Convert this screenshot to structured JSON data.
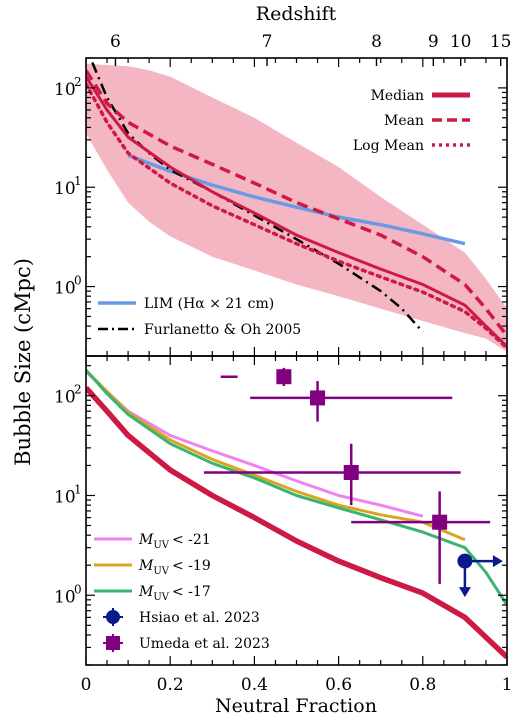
{
  "chart_data": {
    "type": "line",
    "top_axis": {
      "label": "Redshift",
      "ticks": [
        6,
        7,
        8,
        9,
        10,
        15
      ],
      "tick_labels": [
        "6",
        "7",
        "8",
        "9",
        "10",
        "15"
      ],
      "tick_x": [
        0.07,
        0.43,
        0.69,
        0.825,
        0.89,
        0.985
      ]
    },
    "xlabel": "Neutral Fraction",
    "ylabel": "Bubble Size (cMpc)",
    "x_ticks": [
      0,
      0.2,
      0.4,
      0.6,
      0.8,
      1
    ],
    "x_tick_labels": [
      "0",
      "0.2",
      "0.4",
      "0.6",
      "0.8",
      "1"
    ],
    "xlim": [
      0,
      1
    ],
    "panels": [
      {
        "name": "top",
        "yscale": "log",
        "ylim": [
          0.2,
          200
        ],
        "y_ticks": [
          1,
          10,
          100
        ],
        "y_tick_labels": [
          "10",
          "10",
          "10"
        ],
        "y_tick_exponents": [
          "0",
          "1",
          "2"
        ],
        "band": {
          "x": [
            0,
            0.05,
            0.1,
            0.15,
            0.2,
            0.3,
            0.4,
            0.5,
            0.6,
            0.7,
            0.8,
            0.9,
            0.95,
            1.0
          ],
          "lower": [
            35,
            15,
            7,
            4.5,
            3.2,
            2.0,
            1.45,
            1.05,
            0.8,
            0.6,
            0.45,
            0.34,
            0.3,
            0.22
          ],
          "upper": [
            175,
            170,
            165,
            150,
            130,
            80,
            50,
            28,
            16,
            8,
            4.2,
            2.2,
            1.2,
            0.6
          ]
        },
        "series": [
          {
            "name": "Median",
            "style": "solid",
            "color": "#cc1a45",
            "x": [
              0,
              0.05,
              0.1,
              0.2,
              0.3,
              0.4,
              0.5,
              0.6,
              0.7,
              0.8,
              0.9,
              0.95,
              1.0
            ],
            "values": [
              130,
              60,
              32,
              16,
              9,
              5.5,
              3.3,
              2.2,
              1.5,
              1.05,
              0.65,
              0.4,
              0.25
            ]
          },
          {
            "name": "Mean",
            "style": "dashed",
            "color": "#cc1a45",
            "x": [
              0,
              0.05,
              0.1,
              0.2,
              0.3,
              0.4,
              0.5,
              0.6,
              0.7,
              0.8,
              0.9,
              0.95,
              1.0
            ],
            "values": [
              150,
              70,
              45,
              26,
              17,
              11,
              7,
              4.8,
              3.3,
              2.0,
              1.05,
              0.6,
              0.32
            ]
          },
          {
            "name": "Log Mean",
            "style": "dotted",
            "color": "#cc1a45",
            "x": [
              0,
              0.05,
              0.1,
              0.2,
              0.3,
              0.4,
              0.5,
              0.6,
              0.7,
              0.8,
              0.9,
              0.95,
              1.0
            ],
            "values": [
              110,
              45,
              22,
              11,
              6.5,
              4.2,
              2.7,
              1.8,
              1.25,
              0.88,
              0.56,
              0.38,
              0.24
            ]
          },
          {
            "name": "LIM (Hα×21 cm)",
            "style": "solid",
            "color": "#6a9ae6",
            "x": [
              0.1,
              0.2,
              0.3,
              0.4,
              0.5,
              0.6,
              0.7,
              0.8,
              0.9
            ],
            "values": [
              21,
              14.5,
              10.5,
              8.0,
              6.3,
              5.0,
              4.2,
              3.4,
              2.7
            ]
          },
          {
            "name": "Furlanetto & Oh 2005",
            "style": "dashdot",
            "color": "#000000",
            "x": [
              0.015,
              0.05,
              0.1,
              0.15,
              0.2,
              0.3,
              0.4,
              0.5,
              0.6,
              0.7,
              0.75,
              0.8
            ],
            "values": [
              180,
              80,
              35,
              22,
              15,
              9,
              5.2,
              3.0,
              1.7,
              0.9,
              0.6,
              0.35
            ]
          }
        ],
        "legends": [
          {
            "placement": "top-right",
            "entries": [
              "Median",
              "Mean",
              "Log Mean"
            ]
          },
          {
            "placement": "bottom-left",
            "entries": [
              "LIM (Hα×21 cm)",
              "Furlanetto & Oh 2005"
            ]
          }
        ]
      },
      {
        "name": "bottom",
        "yscale": "log",
        "ylim": [
          0.2,
          250
        ],
        "y_ticks": [
          1,
          10,
          100
        ],
        "y_tick_labels": [
          "10",
          "10",
          "10"
        ],
        "y_tick_exponents": [
          "0",
          "1",
          "2"
        ],
        "series": [
          {
            "name": "Median",
            "style": "solid-thick",
            "color": "#cc1a45",
            "x": [
              0,
              0.05,
              0.1,
              0.2,
              0.3,
              0.4,
              0.5,
              0.6,
              0.7,
              0.8,
              0.9,
              0.95,
              1.0
            ],
            "values": [
              120,
              70,
              40,
              18,
              10,
              6,
              3.5,
              2.2,
              1.5,
              1.05,
              0.6,
              0.38,
              0.24
            ]
          },
          {
            "name": "MUV < -21",
            "style": "solid",
            "color": "#ee82ee",
            "x": [
              0,
              0.05,
              0.1,
              0.2,
              0.3,
              0.4,
              0.5,
              0.6,
              0.7,
              0.8
            ],
            "values": [
              175,
              110,
              70,
              40,
              28,
              20,
              14,
              10,
              8,
              6.2
            ]
          },
          {
            "name": "MUV < -19",
            "style": "solid",
            "color": "#daa520",
            "x": [
              0,
              0.05,
              0.1,
              0.2,
              0.3,
              0.4,
              0.5,
              0.6,
              0.7,
              0.8,
              0.9
            ],
            "values": [
              180,
              110,
              68,
              36,
              23,
              16,
              11,
              8,
              6.4,
              5.4,
              3.6
            ]
          },
          {
            "name": "MUV < -17",
            "style": "solid",
            "color": "#3cb371",
            "x": [
              0,
              0.05,
              0.1,
              0.2,
              0.3,
              0.4,
              0.5,
              0.6,
              0.7,
              0.8,
              0.9,
              0.95,
              1.0
            ],
            "values": [
              180,
              105,
              65,
              33,
              21,
              15,
              10,
              7.5,
              5.7,
              4.3,
              3.0,
              1.7,
              0.8
            ]
          }
        ],
        "observations": [
          {
            "name": "Hsiao et al. 2023",
            "marker": "circle",
            "color": "#0a1a8c",
            "points": [
              {
                "x": 0.9,
                "y": 2.2,
                "x_limit": "lower",
                "y_limit": "upper"
              }
            ]
          },
          {
            "name": "Umeda et al. 2023",
            "marker": "square",
            "color": "#800080",
            "points": [
              {
                "x": 0.47,
                "y": 155,
                "xerr": [
                  0.32,
                  0.36
                ],
                "yerr": [
                  125,
                  190
                ]
              },
              {
                "x": 0.55,
                "y": 95,
                "xerr": [
                  0.39,
                  0.87
                ],
                "yerr": [
                  55,
                  140
                ]
              },
              {
                "x": 0.63,
                "y": 17,
                "xerr": [
                  0.28,
                  0.89
                ],
                "yerr": [
                  8,
                  33
                ]
              },
              {
                "x": 0.84,
                "y": 5.4,
                "xerr": [
                  0.63,
                  0.96
                ],
                "yerr": [
                  1.3,
                  11
                ]
              }
            ]
          }
        ],
        "legends": [
          {
            "placement": "bottom-left",
            "entries": [
              "MUV < -21",
              "MUV < -19",
              "MUV < -17",
              "Hsiao et al. 2023",
              "Umeda et al. 2023"
            ]
          }
        ]
      }
    ]
  },
  "legend_text": {
    "median": "Median",
    "mean": "Mean",
    "logmean": "Log Mean",
    "lim": "LIM (Hα × 21 cm)",
    "furlanetto": "Furlanetto & Oh 2005",
    "muv21": "< -21",
    "muv19": "< -19",
    "muv17": "< -17",
    "muv_base": "M",
    "muv_sub": "UV",
    "hsiao": "Hsiao et al. 2023",
    "umeda": "Umeda et al. 2023"
  },
  "colors": {
    "band": "#f4b6c2",
    "median": "#cc1a45",
    "lim": "#6a9ae6",
    "muv21": "#ee82ee",
    "muv19": "#daa520",
    "muv17": "#3cb371",
    "hsiao": "#0a1a8c",
    "umeda": "#800080"
  }
}
